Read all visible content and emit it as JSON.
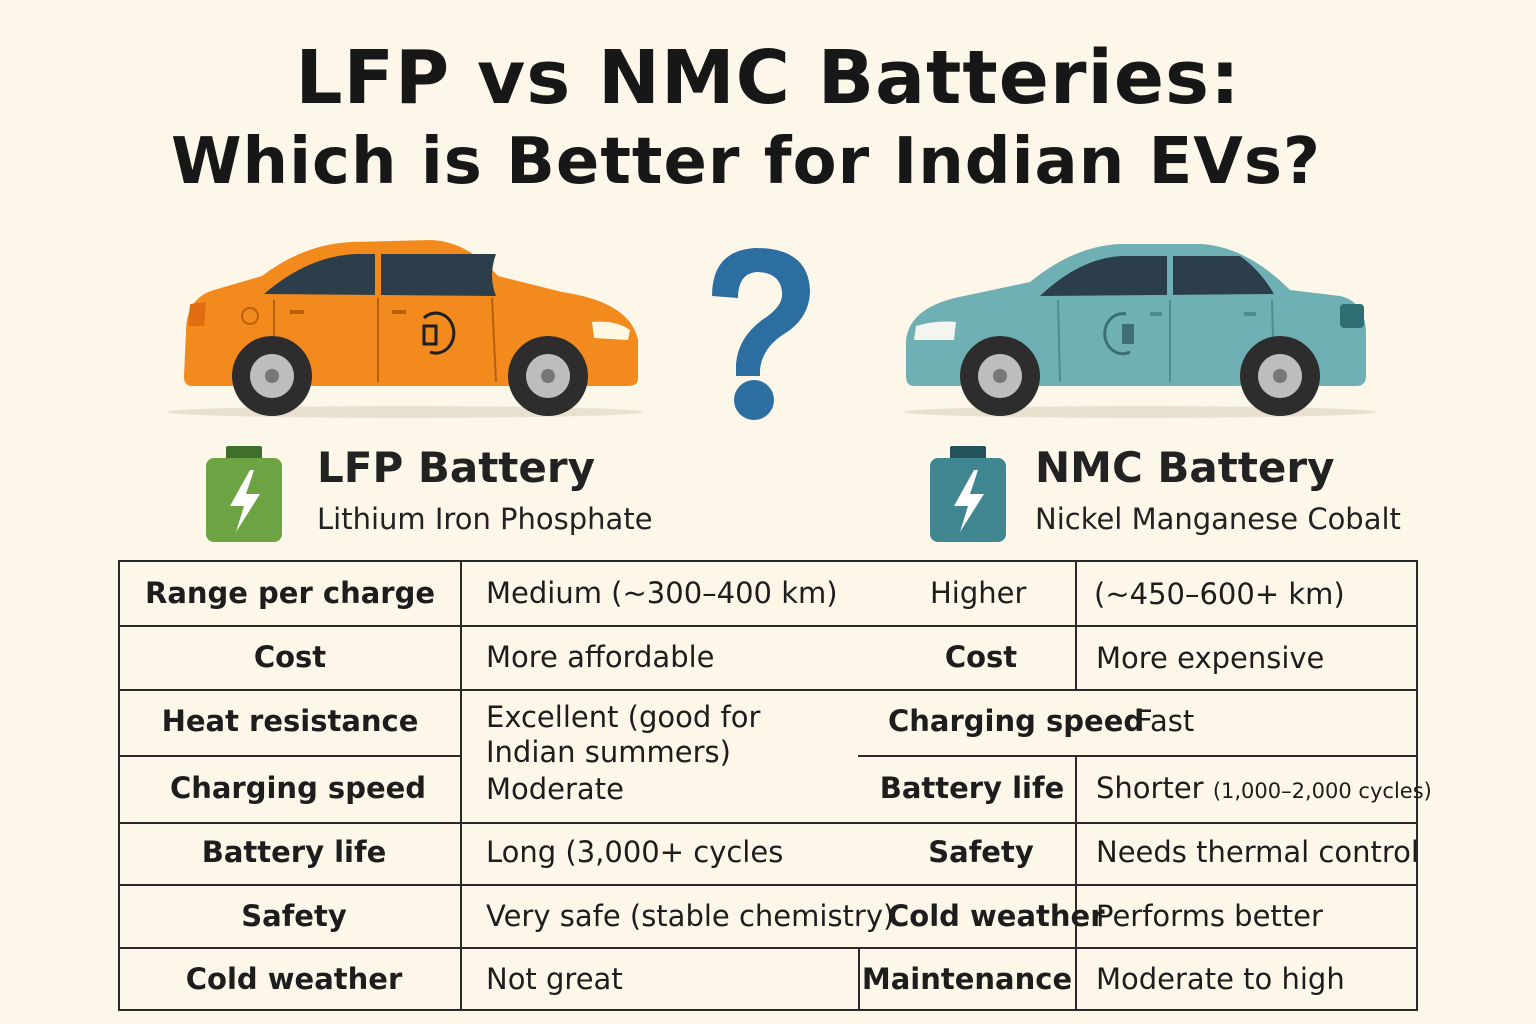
{
  "header": {
    "title_line1": "LFP vs NMC Batteries:",
    "title_line2": "Which is Better for Indian EVs?"
  },
  "icons": {
    "left_car": "orange-car-icon",
    "right_car": "teal-car-icon",
    "question": "question-mark-icon",
    "lfp_battery": "green-battery-icon",
    "nmc_battery": "teal-battery-icon"
  },
  "colors": {
    "lfp_car": "#f28a1e",
    "nmc_car": "#6fb0b4",
    "question": "#2d6ea0",
    "lfp_battery": "#6da443",
    "nmc_battery": "#3f8690"
  },
  "lfp": {
    "name": "LFP Battery",
    "full_name": "Lithium Iron Phosphate"
  },
  "nmc": {
    "name": "NMC Battery",
    "full_name": "Nickel Manganese Cobalt"
  },
  "table": {
    "lfp_labels": [
      "Range per charge",
      "Cost",
      "Heat resistance",
      "Charging speed",
      "Battery life",
      "Safety",
      "Cold weather"
    ],
    "lfp_values": {
      "range": "Medium (~300–400 km)",
      "cost": "More affordable",
      "heat_line1": "Excellent (good for",
      "heat_line2": "Indian summers)",
      "charging": "Moderate",
      "life": "Long (3,000+ cycles",
      "safety": "Very safe (stable chemistry)",
      "cold": "Not great"
    },
    "nmc_labels": {
      "range": "Higher",
      "cost": "Cost",
      "charging": "Charging speed",
      "life": "Battery life",
      "safety": "Safety",
      "cold": "Cold weather",
      "maintenance": "Maintenance"
    },
    "nmc_values": {
      "range": "(~450–600+ km)",
      "cost": "More expensive",
      "charging": "Fast",
      "life_main": "Shorter",
      "life_cycles": "(1,000–2,000 cycles)",
      "safety": "Needs thermal control",
      "cold": "Performs better",
      "maintenance": "Moderate to high"
    }
  }
}
